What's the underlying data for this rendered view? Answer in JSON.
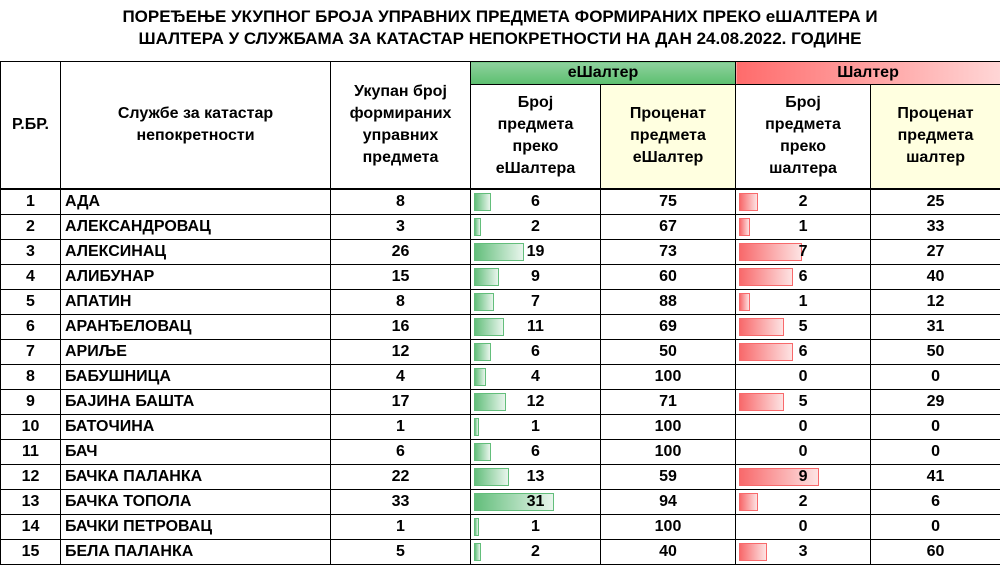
{
  "title_line1": "ПОРЕЂЕЊЕ УКУПНОГ БРОЈА УПРАВНИХ ПРЕДМЕТА ФОРМИРАНИХ ПРЕКО еШАЛТЕРА И",
  "title_line2": "ШАЛТЕРА У СЛУЖБАМА ЗА КАТАСТАР НЕПОКРЕТНОСТИ НА ДАН 24.08.2022. ГОДИНЕ",
  "headers": {
    "rb": "Р.БР.",
    "service": "Службе за катастар непокретности",
    "total": "Укупан број формираних управних предмета",
    "eshalter_group": "еШалтер",
    "eshalter_count": "Број предмета преко еШалтера",
    "eshalter_pct": "Проценат предмета еШалтер",
    "shalter_group": "Шалтер",
    "shalter_count": "Број предмета преко шалтера",
    "shalter_pct": "Проценат предмета шалтер"
  },
  "colors": {
    "green": "#63be7b",
    "red": "#f8696b",
    "pct_header": "#ffffe0"
  },
  "rows": [
    {
      "rb": "1",
      "name": "АДА",
      "total": 8,
      "e": 6,
      "ep": 75,
      "s": 2,
      "sp": 25
    },
    {
      "rb": "2",
      "name": "АЛЕКСАНДРОВАЦ",
      "total": 3,
      "e": 2,
      "ep": 67,
      "s": 1,
      "sp": 33
    },
    {
      "rb": "3",
      "name": "АЛЕКСИНАЦ",
      "total": 26,
      "e": 19,
      "ep": 73,
      "s": 7,
      "sp": 27
    },
    {
      "rb": "4",
      "name": "АЛИБУНАР",
      "total": 15,
      "e": 9,
      "ep": 60,
      "s": 6,
      "sp": 40
    },
    {
      "rb": "5",
      "name": "АПАТИН",
      "total": 8,
      "e": 7,
      "ep": 88,
      "s": 1,
      "sp": 12
    },
    {
      "rb": "6",
      "name": "АРАНЂЕЛОВАЦ",
      "total": 16,
      "e": 11,
      "ep": 69,
      "s": 5,
      "sp": 31
    },
    {
      "rb": "7",
      "name": "АРИЉЕ",
      "total": 12,
      "e": 6,
      "ep": 50,
      "s": 6,
      "sp": 50
    },
    {
      "rb": "8",
      "name": "БАБУШНИЦА",
      "total": 4,
      "e": 4,
      "ep": 100,
      "s": 0,
      "sp": 0
    },
    {
      "rb": "9",
      "name": "БАЈИНА БАШТА",
      "total": 17,
      "e": 12,
      "ep": 71,
      "s": 5,
      "sp": 29
    },
    {
      "rb": "10",
      "name": "БАТОЧИНА",
      "total": 1,
      "e": 1,
      "ep": 100,
      "s": 0,
      "sp": 0
    },
    {
      "rb": "11",
      "name": "БАЧ",
      "total": 6,
      "e": 6,
      "ep": 100,
      "s": 0,
      "sp": 0
    },
    {
      "rb": "12",
      "name": "БАЧКА ПАЛАНКА",
      "total": 22,
      "e": 13,
      "ep": 59,
      "s": 9,
      "sp": 41
    },
    {
      "rb": "13",
      "name": "БАЧКА ТОПОЛА",
      "total": 33,
      "e": 31,
      "ep": 94,
      "s": 2,
      "sp": 6
    },
    {
      "rb": "14",
      "name": "БАЧКИ ПЕТРОВАЦ",
      "total": 1,
      "e": 1,
      "ep": 100,
      "s": 0,
      "sp": 0
    },
    {
      "rb": "15",
      "name": "БЕЛА ПАЛАНКА",
      "total": 5,
      "e": 2,
      "ep": 40,
      "s": 3,
      "sp": 60
    }
  ]
}
